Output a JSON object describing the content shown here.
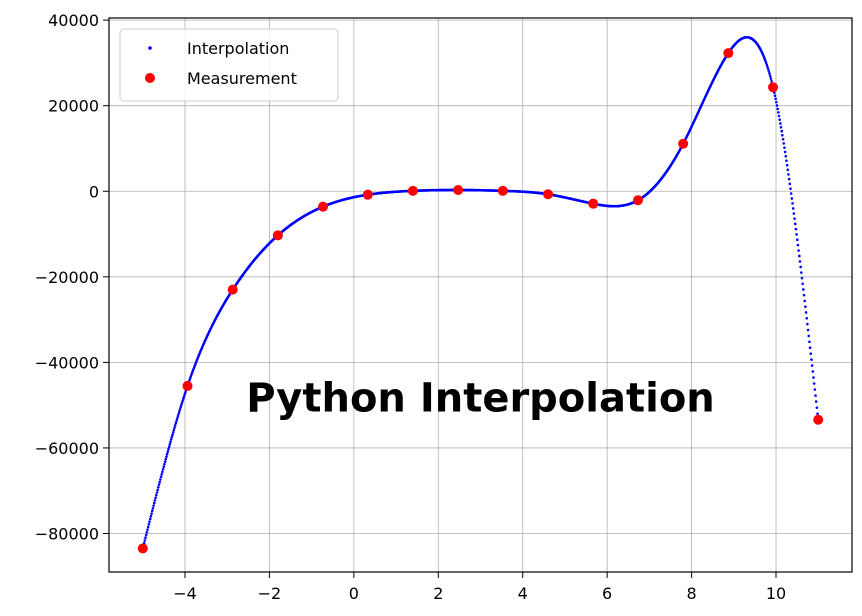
{
  "chart_data": {
    "type": "scatter",
    "title": "",
    "xlabel": "",
    "ylabel": "",
    "xlim": [
      -5.8,
      11.8
    ],
    "ylim": [
      -89000,
      40500
    ],
    "grid": true,
    "x_ticks": [
      -4,
      -2,
      0,
      2,
      4,
      6,
      8,
      10
    ],
    "y_ticks": [
      -80000,
      -60000,
      -40000,
      -20000,
      0,
      20000,
      40000
    ],
    "x_tick_labels": [
      "−4",
      "−2",
      "0",
      "2",
      "4",
      "6",
      "8",
      "10"
    ],
    "y_tick_labels": [
      "−80000",
      "−60000",
      "−40000",
      "−20000",
      "0",
      "20000",
      "40000"
    ],
    "legend_position": "upper-left",
    "annotation": "Python Interpolation",
    "series": [
      {
        "name": "Interpolation",
        "marker": "small-dot",
        "color": "#0000ff",
        "interpolation": "cubic-spline-through-measurements",
        "x_range": [
          -5.0,
          11.0
        ],
        "points_count": 1000
      },
      {
        "name": "Measurement",
        "marker": "dot",
        "color": "#ff0000",
        "x": [
          -5.0,
          -3.94,
          -2.87,
          -1.8,
          -0.73,
          0.33,
          1.4,
          2.47,
          3.53,
          4.6,
          5.67,
          6.73,
          7.8,
          8.87,
          9.93,
          11.0
        ],
        "y": [
          -83500,
          -45500,
          -23000,
          -10300,
          -3600,
          -800,
          100,
          300,
          100,
          -700,
          -2900,
          -2100,
          11100,
          32300,
          24300,
          -53400
        ]
      }
    ]
  }
}
